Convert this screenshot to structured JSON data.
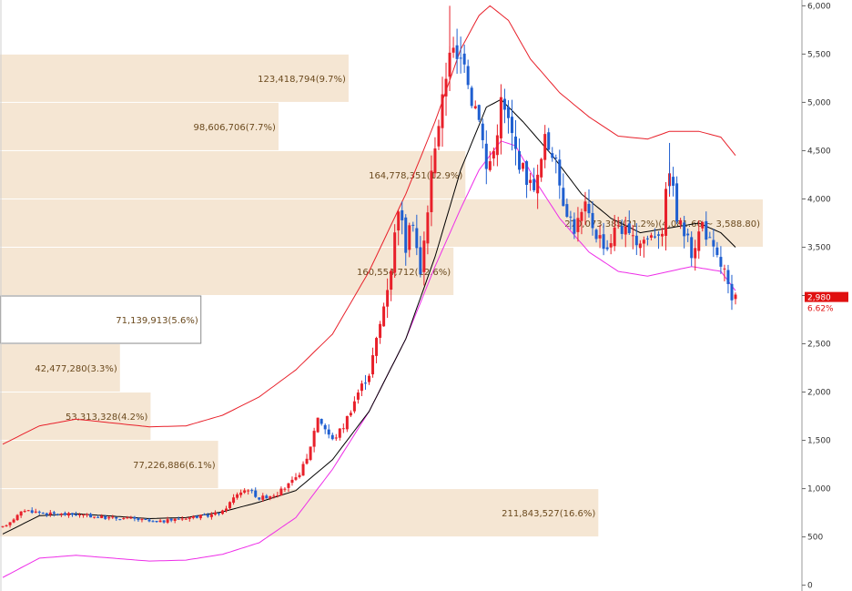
{
  "colors": {
    "up": "#e8202a",
    "down": "#1f5fd0",
    "ma": "#000000",
    "band_upper": "#e8202a",
    "band_lower": "#ee2ee8",
    "profile_fill": "#f5e6d3",
    "profile_text": "#6b4a1e",
    "price_tag": "#e01010"
  },
  "chart_data": {
    "type": "candlestick",
    "title": "",
    "y_axis": {
      "position": "right",
      "range": [
        -60,
        6060
      ],
      "ticks": [
        0,
        500,
        1000,
        1500,
        2000,
        2500,
        3000,
        3500,
        4000,
        4500,
        5000,
        5500,
        6000
      ],
      "tick_labels": [
        "0",
        "500",
        "1,000",
        "1,500",
        "2,000",
        "2,500",
        "3,000",
        "3,500",
        "4,000",
        "4,500",
        "5,000",
        "5,500",
        "6,000"
      ]
    },
    "x_axis": {
      "label": "",
      "visible": false
    },
    "grid": false,
    "current_price": {
      "label": "2,980",
      "value": 2980,
      "change": "6.62%"
    },
    "price_path": [
      {
        "i": 0,
        "v": 600
      },
      {
        "i": 6,
        "v": 780
      },
      {
        "i": 12,
        "v": 740
      },
      {
        "i": 20,
        "v": 730
      },
      {
        "i": 28,
        "v": 700
      },
      {
        "i": 35,
        "v": 690
      },
      {
        "i": 42,
        "v": 650
      },
      {
        "i": 50,
        "v": 700
      },
      {
        "i": 56,
        "v": 720
      },
      {
        "i": 60,
        "v": 760
      },
      {
        "i": 64,
        "v": 950
      },
      {
        "i": 67,
        "v": 1000
      },
      {
        "i": 70,
        "v": 900
      },
      {
        "i": 75,
        "v": 950
      },
      {
        "i": 80,
        "v": 1100
      },
      {
        "i": 83,
        "v": 1300
      },
      {
        "i": 86,
        "v": 1750
      },
      {
        "i": 90,
        "v": 1500
      },
      {
        "i": 93,
        "v": 1650
      },
      {
        "i": 97,
        "v": 2000
      },
      {
        "i": 100,
        "v": 2200
      },
      {
        "i": 103,
        "v": 2700
      },
      {
        "i": 106,
        "v": 3300
      },
      {
        "i": 108,
        "v": 3950
      },
      {
        "i": 110,
        "v": 3500
      },
      {
        "i": 112,
        "v": 3800
      },
      {
        "i": 114,
        "v": 3200
      },
      {
        "i": 116,
        "v": 3900
      },
      {
        "i": 118,
        "v": 4600
      },
      {
        "i": 120,
        "v": 5000
      },
      {
        "i": 122,
        "v": 5600
      },
      {
        "i": 124,
        "v": 5400
      },
      {
        "i": 126,
        "v": 5500
      },
      {
        "i": 128,
        "v": 5050
      },
      {
        "i": 130,
        "v": 4900
      },
      {
        "i": 132,
        "v": 4300
      },
      {
        "i": 134,
        "v": 4500
      },
      {
        "i": 136,
        "v": 5000
      },
      {
        "i": 138,
        "v": 4800
      },
      {
        "i": 140,
        "v": 4500
      },
      {
        "i": 142,
        "v": 4300
      },
      {
        "i": 144,
        "v": 4150
      },
      {
        "i": 146,
        "v": 4200
      },
      {
        "i": 148,
        "v": 4600
      },
      {
        "i": 150,
        "v": 4500
      },
      {
        "i": 153,
        "v": 4000
      },
      {
        "i": 156,
        "v": 3700
      },
      {
        "i": 159,
        "v": 3900
      },
      {
        "i": 162,
        "v": 3650
      },
      {
        "i": 165,
        "v": 3500
      },
      {
        "i": 168,
        "v": 3750
      },
      {
        "i": 172,
        "v": 3550
      },
      {
        "i": 176,
        "v": 3600
      },
      {
        "i": 180,
        "v": 3700
      },
      {
        "i": 182,
        "v": 4350
      },
      {
        "i": 184,
        "v": 3800
      },
      {
        "i": 186,
        "v": 3650
      },
      {
        "i": 188,
        "v": 3450
      },
      {
        "i": 191,
        "v": 3750
      },
      {
        "i": 194,
        "v": 3450
      },
      {
        "i": 197,
        "v": 3250
      },
      {
        "i": 199,
        "v": 2900
      },
      {
        "i": 200,
        "v": 2980
      }
    ],
    "moving_average": [
      {
        "i": 0,
        "v": 530
      },
      {
        "i": 10,
        "v": 720
      },
      {
        "i": 20,
        "v": 740
      },
      {
        "i": 30,
        "v": 715
      },
      {
        "i": 40,
        "v": 690
      },
      {
        "i": 50,
        "v": 700
      },
      {
        "i": 60,
        "v": 760
      },
      {
        "i": 70,
        "v": 860
      },
      {
        "i": 80,
        "v": 980
      },
      {
        "i": 90,
        "v": 1300
      },
      {
        "i": 100,
        "v": 1800
      },
      {
        "i": 110,
        "v": 2550
      },
      {
        "i": 118,
        "v": 3400
      },
      {
        "i": 125,
        "v": 4300
      },
      {
        "i": 132,
        "v": 4950
      },
      {
        "i": 136,
        "v": 5030
      },
      {
        "i": 142,
        "v": 4800
      },
      {
        "i": 150,
        "v": 4450
      },
      {
        "i": 158,
        "v": 4050
      },
      {
        "i": 166,
        "v": 3800
      },
      {
        "i": 174,
        "v": 3650
      },
      {
        "i": 182,
        "v": 3700
      },
      {
        "i": 190,
        "v": 3750
      },
      {
        "i": 196,
        "v": 3650
      },
      {
        "i": 200,
        "v": 3500
      }
    ],
    "band_upper": [
      {
        "i": 0,
        "v": 1460
      },
      {
        "i": 10,
        "v": 1650
      },
      {
        "i": 20,
        "v": 1720
      },
      {
        "i": 30,
        "v": 1680
      },
      {
        "i": 40,
        "v": 1640
      },
      {
        "i": 50,
        "v": 1650
      },
      {
        "i": 60,
        "v": 1760
      },
      {
        "i": 70,
        "v": 1950
      },
      {
        "i": 80,
        "v": 2230
      },
      {
        "i": 90,
        "v": 2600
      },
      {
        "i": 100,
        "v": 3250
      },
      {
        "i": 110,
        "v": 4050
      },
      {
        "i": 118,
        "v": 4800
      },
      {
        "i": 125,
        "v": 5550
      },
      {
        "i": 130,
        "v": 5900
      },
      {
        "i": 133,
        "v": 6000
      },
      {
        "i": 138,
        "v": 5850
      },
      {
        "i": 144,
        "v": 5450
      },
      {
        "i": 152,
        "v": 5100
      },
      {
        "i": 160,
        "v": 4850
      },
      {
        "i": 168,
        "v": 4650
      },
      {
        "i": 176,
        "v": 4620
      },
      {
        "i": 182,
        "v": 4700
      },
      {
        "i": 190,
        "v": 4700
      },
      {
        "i": 196,
        "v": 4640
      },
      {
        "i": 200,
        "v": 4450
      }
    ],
    "band_lower": [
      {
        "i": 0,
        "v": 80
      },
      {
        "i": 10,
        "v": 280
      },
      {
        "i": 20,
        "v": 310
      },
      {
        "i": 30,
        "v": 280
      },
      {
        "i": 40,
        "v": 250
      },
      {
        "i": 50,
        "v": 260
      },
      {
        "i": 60,
        "v": 320
      },
      {
        "i": 70,
        "v": 440
      },
      {
        "i": 80,
        "v": 700
      },
      {
        "i": 90,
        "v": 1200
      },
      {
        "i": 100,
        "v": 1800
      },
      {
        "i": 110,
        "v": 2550
      },
      {
        "i": 118,
        "v": 3300
      },
      {
        "i": 125,
        "v": 3900
      },
      {
        "i": 130,
        "v": 4300
      },
      {
        "i": 136,
        "v": 4600
      },
      {
        "i": 140,
        "v": 4550
      },
      {
        "i": 146,
        "v": 4150
      },
      {
        "i": 152,
        "v": 3800
      },
      {
        "i": 160,
        "v": 3450
      },
      {
        "i": 168,
        "v": 3250
      },
      {
        "i": 176,
        "v": 3200
      },
      {
        "i": 182,
        "v": 3250
      },
      {
        "i": 188,
        "v": 3300
      },
      {
        "i": 196,
        "v": 3250
      },
      {
        "i": 200,
        "v": 3050
      }
    ],
    "volume_profile": [
      {
        "low": 0,
        "high": 500,
        "value": "",
        "label": ""
      },
      {
        "low": 500,
        "high": 1000,
        "value": 211843527,
        "label": "211,843,527(16.6%)"
      },
      {
        "low": 1000,
        "high": 1500,
        "value": 77226886,
        "label": "77,226,886(6.1%)"
      },
      {
        "low": 1500,
        "high": 2000,
        "value": 53313328,
        "label": "53,313,328(4.2%)"
      },
      {
        "low": 2000,
        "high": 2500,
        "value": 42477280,
        "label": "42,477,280(3.3%)"
      },
      {
        "low": 2500,
        "high": 3000,
        "value": 71139913,
        "label": "71,139,913(5.6%)"
      },
      {
        "low": 3000,
        "high": 3500,
        "value": 160554712,
        "label": "160,554,712(12.6%)"
      },
      {
        "low": 3500,
        "high": 4000,
        "value": 270073389,
        "label": "270,073,389(21.2%)(4,081.60 ~ 3,588.80)"
      },
      {
        "low": 4000,
        "high": 4500,
        "value": 164778351,
        "label": "164,778,351(12.9%)"
      },
      {
        "low": 4500,
        "high": 5000,
        "value": 98606706,
        "label": "98,606,706(7.7%)"
      },
      {
        "low": 5000,
        "high": 5500,
        "value": 123418794,
        "label": "123,418,794(9.7%)"
      }
    ],
    "candle_count": 200
  }
}
